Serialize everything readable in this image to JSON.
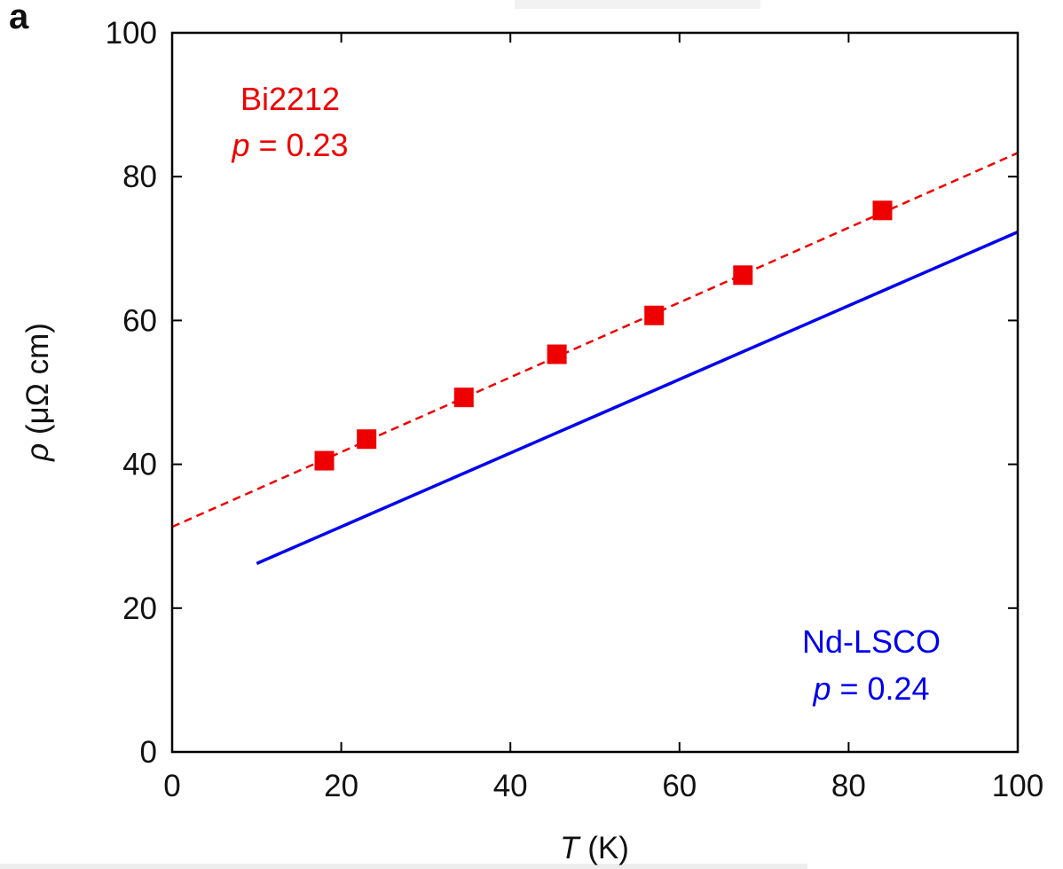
{
  "panel_label": "a",
  "colors": {
    "bi2212": "#ee0000",
    "ndlsco": "#0000ee",
    "axis": "#000000"
  },
  "annotations": {
    "bi2212": {
      "line1": "Bi2212",
      "var": "p",
      "rest": " = 0.23"
    },
    "ndlsco": {
      "line1": "Nd-LSCO",
      "var": "p",
      "rest": " = 0.24"
    }
  },
  "chart_data": {
    "type": "scatter",
    "xlabel": {
      "var": "T",
      "unit": " (K)"
    },
    "ylabel": {
      "var": "ρ",
      "unit": " (μΩ cm)"
    },
    "xlim": [
      0,
      100
    ],
    "ylim": [
      0,
      100
    ],
    "xticks": [
      0,
      20,
      40,
      60,
      80,
      100
    ],
    "yticks": [
      0,
      20,
      40,
      60,
      80,
      100
    ],
    "xtick_labels": [
      "0",
      "20",
      "40",
      "60",
      "80",
      "100"
    ],
    "ytick_labels": [
      "0",
      "20",
      "40",
      "60",
      "80",
      "100"
    ],
    "grid": false,
    "series": [
      {
        "name": "Bi2212",
        "kind": "markers",
        "marker": "square",
        "color": "#ee0000",
        "x": [
          18.0,
          23.0,
          34.5,
          45.5,
          57.0,
          67.5,
          84.0
        ],
        "y": [
          40.5,
          43.5,
          49.3,
          55.3,
          60.7,
          66.3,
          75.3
        ]
      },
      {
        "name": "Bi2212 fit",
        "kind": "dashed-line",
        "color": "#ee0000",
        "x": [
          0,
          100
        ],
        "y": [
          31.3,
          83.3
        ]
      },
      {
        "name": "Nd-LSCO",
        "kind": "solid-line",
        "color": "#0000ee",
        "x": [
          10,
          100
        ],
        "y": [
          26.2,
          72.3
        ]
      }
    ]
  }
}
